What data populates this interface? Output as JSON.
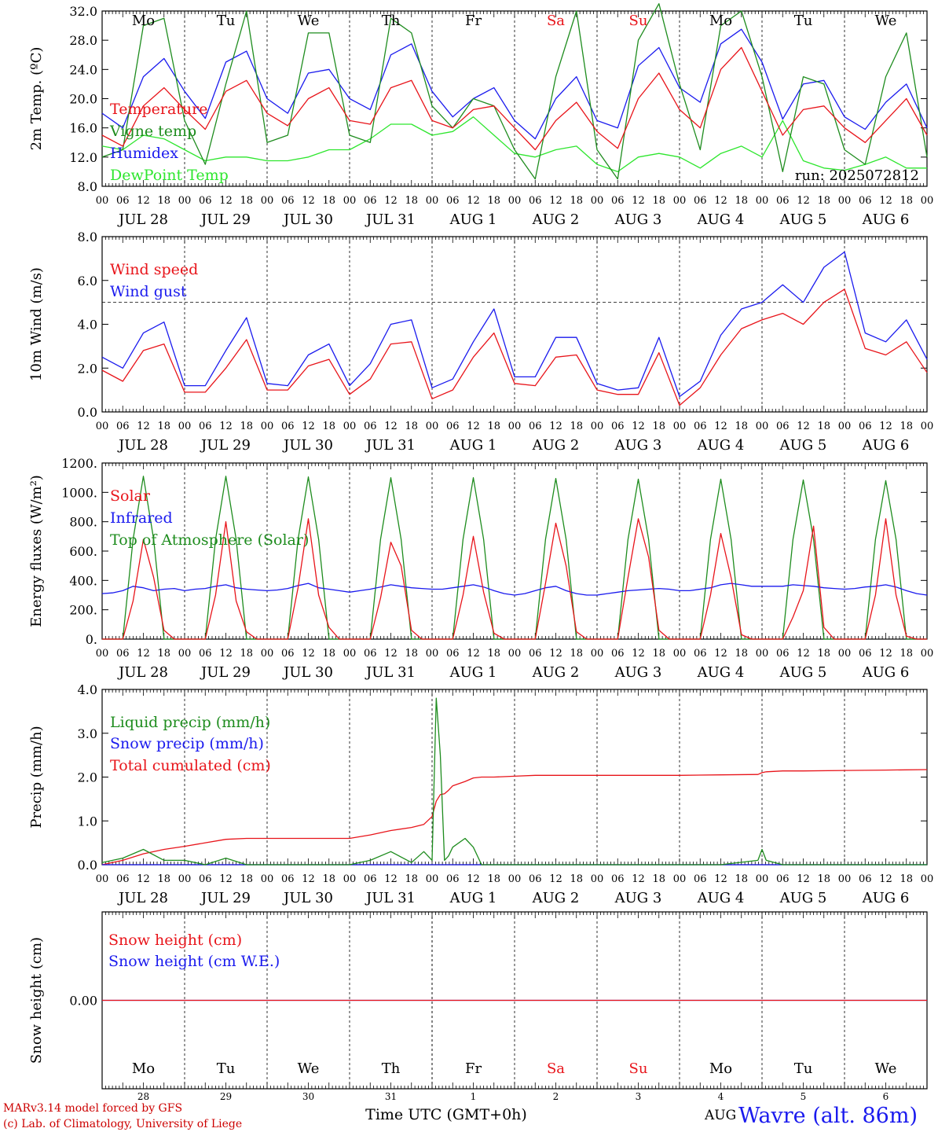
{
  "colors": {
    "red": "#e8141a",
    "green": "#1e8c1e",
    "blue": "#1a1aee",
    "lime": "#2ee62e",
    "black": "#000000"
  },
  "days": {
    "names": [
      "Mo",
      "Tu",
      "We",
      "Th",
      "Fr",
      "Sa",
      "Su",
      "Mo",
      "Tu",
      "We"
    ],
    "weekend_color_index": [
      5,
      6
    ],
    "dates": [
      "JUL 28",
      "JUL 29",
      "JUL 30",
      "JUL 31",
      "AUG  1",
      "AUG  2",
      "AUG  3",
      "AUG  4",
      "AUG  5",
      "AUG  6"
    ],
    "day_numbers": [
      "28",
      "29",
      "30",
      "31",
      "1",
      "2",
      "3",
      "4",
      "5",
      "6"
    ],
    "hours": [
      "00",
      "06",
      "12",
      "18"
    ],
    "end_hour": "00"
  },
  "footer": {
    "model": "MARv3.14 model forced by GFS",
    "lab": "(c) Lab. of Climatology, University of Liege",
    "time_axis": "Time UTC (GMT+0h)",
    "month": "AUG",
    "station": "Wavre (alt. 86m)"
  },
  "chart_data": [
    {
      "id": "temp",
      "type": "line",
      "ylabel": "2m Temp. (ºC)",
      "ylim": [
        8,
        32
      ],
      "yticks": [
        "8.0",
        "12.0",
        "16.0",
        "20.0",
        "24.0",
        "28.0",
        "32.0"
      ],
      "ytick_values": [
        8,
        12,
        16,
        20,
        24,
        28,
        32
      ],
      "annotation": "run: 2025072812",
      "x_days": [
        0,
        0.25,
        0.5,
        0.75,
        1,
        1.25,
        1.5,
        1.75,
        2,
        2.25,
        2.5,
        2.75,
        3,
        3.25,
        3.5,
        3.75,
        4,
        4.25,
        4.5,
        4.75,
        5,
        5.25,
        5.5,
        5.75,
        6,
        6.25,
        6.5,
        6.75,
        7,
        7.25,
        7.5,
        7.75,
        8,
        8.25,
        8.5,
        8.75,
        9,
        9.25,
        9.5,
        9.75,
        10
      ],
      "series": [
        {
          "name": "Temperature",
          "color": "#e8141a",
          "values": [
            15,
            13.5,
            19,
            21.5,
            18.5,
            15.8,
            21,
            22.5,
            18,
            16.3,
            20,
            21.5,
            17,
            16.5,
            21.5,
            22.5,
            17,
            16,
            18.5,
            19,
            16,
            13,
            17,
            19.5,
            15.5,
            13.2,
            20,
            23.5,
            18.5,
            16,
            24,
            27,
            21,
            15,
            18.5,
            19,
            16,
            14,
            17,
            20,
            15
          ]
        },
        {
          "name": "Vigne temp",
          "color": "#1e8c1e",
          "values": [
            12,
            13,
            30,
            31,
            17,
            11,
            22,
            32,
            14,
            15,
            29,
            29,
            15,
            14,
            31,
            29,
            19,
            16,
            20,
            19,
            13,
            9,
            23,
            32,
            13,
            9,
            28,
            33,
            22,
            13,
            30,
            32,
            23,
            10,
            23,
            22,
            13,
            11,
            23,
            29,
            12
          ]
        },
        {
          "name": "Humidex",
          "color": "#1a1aee",
          "values": [
            18,
            16,
            23,
            25.5,
            21,
            17.3,
            25,
            26.5,
            20,
            18,
            23.5,
            24,
            20,
            18.5,
            26,
            27.5,
            21,
            17.5,
            20,
            21.5,
            17,
            14.5,
            20,
            23,
            17,
            16,
            24.5,
            27,
            21.5,
            19.5,
            27.5,
            29.5,
            25,
            17.2,
            22,
            22.5,
            17.5,
            15.8,
            19.5,
            22,
            16
          ]
        },
        {
          "name": "DewPoint Temp",
          "color": "#2ee62e",
          "values": [
            13.5,
            13,
            15,
            14.5,
            13,
            11.5,
            12,
            12,
            11.5,
            11.5,
            12,
            13,
            13,
            14.5,
            16.5,
            16.5,
            15,
            15.5,
            17.5,
            15,
            12.5,
            12,
            13,
            13.5,
            11,
            10,
            12,
            12.5,
            12,
            10.5,
            12.5,
            13.5,
            12,
            17,
            11.5,
            10.5,
            10.2,
            11,
            12,
            10.5,
            10.5
          ]
        }
      ]
    },
    {
      "id": "wind",
      "type": "line",
      "ylabel": "10m Wind (m/s)",
      "ylim": [
        0,
        8
      ],
      "yticks": [
        "0.0",
        "2.0",
        "4.0",
        "6.0",
        "8.0"
      ],
      "ytick_values": [
        0,
        2,
        4,
        6,
        8
      ],
      "reference_line": 5,
      "x_days": [
        0,
        0.25,
        0.5,
        0.75,
        1,
        1.25,
        1.5,
        1.75,
        2,
        2.25,
        2.5,
        2.75,
        3,
        3.25,
        3.5,
        3.75,
        4,
        4.25,
        4.5,
        4.75,
        5,
        5.25,
        5.5,
        5.75,
        6,
        6.25,
        6.5,
        6.75,
        7,
        7.25,
        7.5,
        7.75,
        8,
        8.25,
        8.5,
        8.75,
        9,
        9.25,
        9.5,
        9.75,
        10
      ],
      "series": [
        {
          "name": "Wind speed",
          "color": "#e8141a",
          "values": [
            1.9,
            1.4,
            2.8,
            3.1,
            0.9,
            0.9,
            2,
            3.3,
            1,
            1,
            2.1,
            2.4,
            0.8,
            1.5,
            3.1,
            3.2,
            0.6,
            1,
            2.5,
            3.6,
            1.3,
            1.2,
            2.5,
            2.6,
            1,
            0.8,
            0.8,
            2.7,
            0.3,
            1.1,
            2.6,
            3.8,
            4.2,
            4.5,
            4,
            5,
            5.6,
            2.9,
            2.6,
            3.2,
            1.8
          ]
        },
        {
          "name": "Wind gust",
          "color": "#1a1aee",
          "values": [
            2.5,
            2,
            3.6,
            4.1,
            1.2,
            1.2,
            2.8,
            4.3,
            1.3,
            1.2,
            2.6,
            3.1,
            1.2,
            2.2,
            4,
            4.2,
            1.1,
            1.5,
            3.2,
            4.7,
            1.6,
            1.6,
            3.4,
            3.4,
            1.3,
            1,
            1.1,
            3.4,
            0.7,
            1.4,
            3.5,
            4.7,
            5,
            5.8,
            5,
            6.6,
            7.3,
            3.6,
            3.2,
            4.2,
            2.4
          ]
        }
      ]
    },
    {
      "id": "energy",
      "type": "line",
      "ylabel": "Energy fluxes (W/m²)",
      "ylim": [
        0,
        1200
      ],
      "yticks": [
        "0.",
        "200.",
        "400.",
        "600.",
        "800.",
        "1000.",
        "1200."
      ],
      "ytick_values": [
        0,
        200,
        400,
        600,
        800,
        1000,
        1200
      ],
      "x_days": [
        0,
        0.125,
        0.25,
        0.375,
        0.5,
        0.625,
        0.75,
        0.875,
        1,
        1.125,
        1.25,
        1.375,
        1.5,
        1.625,
        1.75,
        1.875,
        2,
        2.125,
        2.25,
        2.375,
        2.5,
        2.625,
        2.75,
        2.875,
        3,
        3.125,
        3.25,
        3.375,
        3.5,
        3.625,
        3.75,
        3.875,
        4,
        4.125,
        4.25,
        4.375,
        4.5,
        4.625,
        4.75,
        4.875,
        5,
        5.125,
        5.25,
        5.375,
        5.5,
        5.625,
        5.75,
        5.875,
        6,
        6.125,
        6.25,
        6.375,
        6.5,
        6.625,
        6.75,
        6.875,
        7,
        7.125,
        7.25,
        7.375,
        7.5,
        7.625,
        7.75,
        7.875,
        8,
        8.125,
        8.25,
        8.375,
        8.5,
        8.625,
        8.75,
        8.875,
        9,
        9.125,
        9.25,
        9.375,
        9.5,
        9.625,
        9.75,
        9.875,
        10
      ],
      "series": [
        {
          "name": "Solar",
          "color": "#e8141a",
          "values": [
            0,
            0,
            0,
            260,
            680,
            420,
            60,
            0,
            0,
            0,
            0,
            300,
            800,
            260,
            50,
            0,
            0,
            0,
            0,
            350,
            820,
            300,
            80,
            0,
            0,
            0,
            0,
            280,
            660,
            500,
            60,
            0,
            0,
            0,
            0,
            300,
            700,
            320,
            40,
            0,
            0,
            0,
            0,
            380,
            790,
            500,
            50,
            0,
            0,
            0,
            0,
            420,
            820,
            560,
            60,
            0,
            0,
            0,
            0,
            300,
            720,
            420,
            30,
            0,
            0,
            0,
            0,
            150,
            330,
            770,
            80,
            0,
            0,
            0,
            0,
            300,
            820,
            300,
            20,
            0,
            0
          ]
        },
        {
          "name": "Infrared",
          "color": "#1a1aee",
          "values": [
            310,
            315,
            330,
            360,
            350,
            330,
            340,
            345,
            330,
            340,
            345,
            360,
            370,
            350,
            340,
            335,
            330,
            335,
            345,
            365,
            380,
            350,
            340,
            330,
            320,
            330,
            340,
            355,
            370,
            360,
            350,
            345,
            340,
            340,
            350,
            360,
            370,
            355,
            330,
            310,
            300,
            310,
            330,
            350,
            360,
            330,
            310,
            300,
            300,
            310,
            320,
            330,
            335,
            340,
            345,
            340,
            330,
            330,
            340,
            350,
            370,
            380,
            370,
            360,
            360,
            360,
            360,
            370,
            365,
            360,
            350,
            345,
            340,
            345,
            355,
            360,
            370,
            355,
            330,
            310,
            300
          ]
        },
        {
          "name": "Top of Atmosphere (Solar)",
          "color": "#1e8c1e",
          "values": [
            0,
            0,
            0,
            680,
            1110,
            680,
            0,
            0,
            0,
            0,
            0,
            680,
            1110,
            680,
            0,
            0,
            0,
            0,
            0,
            680,
            1105,
            680,
            0,
            0,
            0,
            0,
            0,
            680,
            1100,
            680,
            0,
            0,
            0,
            0,
            0,
            680,
            1100,
            680,
            0,
            0,
            0,
            0,
            0,
            680,
            1095,
            680,
            0,
            0,
            0,
            0,
            0,
            680,
            1090,
            680,
            0,
            0,
            0,
            0,
            0,
            680,
            1090,
            680,
            0,
            0,
            0,
            0,
            0,
            680,
            1085,
            680,
            0,
            0,
            0,
            0,
            0,
            680,
            1080,
            680,
            0,
            0,
            0
          ]
        }
      ]
    },
    {
      "id": "precip",
      "type": "line",
      "ylabel": "Precip (mm/h)",
      "ylim": [
        0,
        4
      ],
      "yticks": [
        "0.0",
        "1.0",
        "2.0",
        "3.0",
        "4.0"
      ],
      "ytick_values": [
        0,
        1,
        2,
        3,
        4
      ],
      "x_days": [
        0,
        0.25,
        0.5,
        0.75,
        1,
        1.25,
        1.5,
        1.75,
        2,
        2.25,
        2.5,
        2.75,
        3,
        3.25,
        3.5,
        3.75,
        3.9,
        4,
        4.05,
        4.1,
        4.15,
        4.2,
        4.25,
        4.4,
        4.5,
        4.6,
        4.75,
        5,
        5.25,
        5.5,
        5.75,
        6,
        6.5,
        7,
        7.5,
        7.95,
        8,
        8.05,
        8.25,
        8.5,
        9,
        9.5,
        10
      ],
      "series": [
        {
          "name": "Liquid precip (mm/h)",
          "color": "#1e8c1e",
          "values": [
            0.05,
            0.15,
            0.35,
            0.1,
            0.1,
            0,
            0.15,
            0,
            0,
            0,
            0,
            0,
            0,
            0.1,
            0.3,
            0.05,
            0.3,
            0.1,
            3.8,
            2.5,
            0.1,
            0.2,
            0.4,
            0.6,
            0.4,
            0,
            0,
            0,
            0,
            0,
            0,
            0,
            0,
            0,
            0,
            0.1,
            0.35,
            0.1,
            0,
            0,
            0,
            0,
            0
          ]
        },
        {
          "name": "Snow precip (mm/h)",
          "color": "#1a1aee",
          "values": [
            0,
            0,
            0,
            0,
            0,
            0,
            0,
            0,
            0,
            0,
            0,
            0,
            0,
            0,
            0,
            0,
            0,
            0,
            0,
            0,
            0,
            0,
            0,
            0,
            0,
            0,
            0,
            0,
            0,
            0,
            0,
            0,
            0,
            0,
            0,
            0,
            0,
            0,
            0,
            0,
            0,
            0,
            0
          ]
        },
        {
          "name": "Total cumulated (cm)",
          "color": "#e8141a",
          "values": [
            0,
            0.1,
            0.25,
            0.35,
            0.42,
            0.5,
            0.58,
            0.6,
            0.6,
            0.6,
            0.6,
            0.6,
            0.6,
            0.68,
            0.78,
            0.85,
            0.92,
            1.1,
            1.45,
            1.6,
            1.62,
            1.7,
            1.8,
            1.9,
            1.98,
            2.0,
            2.0,
            2.02,
            2.04,
            2.04,
            2.04,
            2.04,
            2.04,
            2.04,
            2.05,
            2.06,
            2.1,
            2.12,
            2.14,
            2.14,
            2.15,
            2.16,
            2.17
          ]
        }
      ]
    },
    {
      "id": "snow",
      "type": "line",
      "ylabel": "Snow height (cm)",
      "ylim": [
        -1,
        1
      ],
      "yticks": [
        "0.00"
      ],
      "ytick_values": [
        0
      ],
      "x_days": [
        0,
        10
      ],
      "series": [
        {
          "name": "Snow height (cm)",
          "color": "#e8141a",
          "values": [
            0,
            0
          ]
        },
        {
          "name": "Snow height (cm W.E.)",
          "color": "#1a1aee",
          "values": [
            0,
            0
          ]
        }
      ]
    }
  ]
}
